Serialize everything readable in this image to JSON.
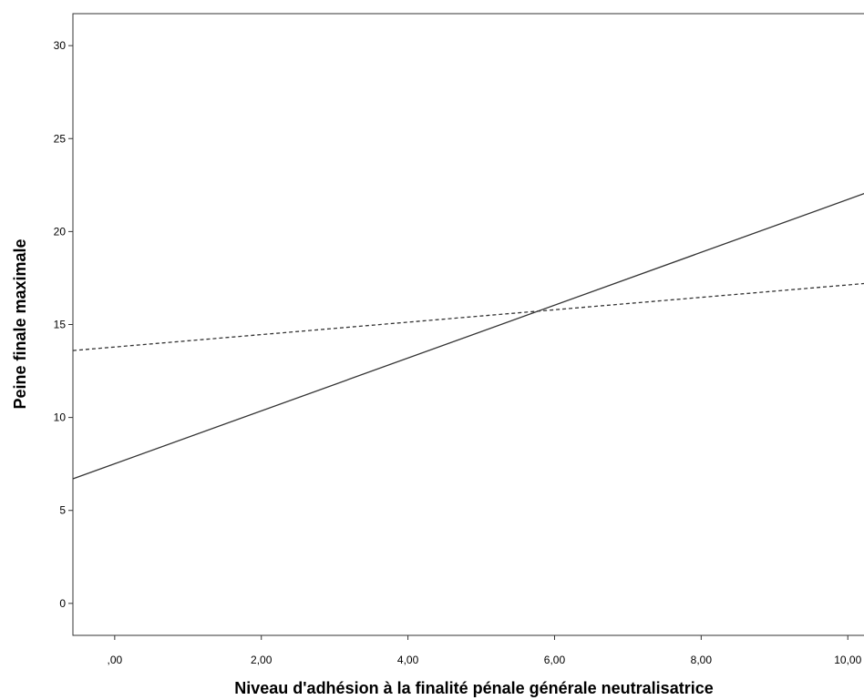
{
  "chart_data": {
    "type": "line",
    "title": "",
    "xlabel": "Niveau d'adhésion à la finalité pénale générale neutralisatrice",
    "ylabel": "Peine finale maximale",
    "xlim": [
      -0.57,
      10.37
    ],
    "ylim": [
      -1.72,
      31.72
    ],
    "x_ticks": [
      0,
      2,
      4,
      6,
      8,
      10
    ],
    "x_tick_labels": [
      ",00",
      "2,00",
      "4,00",
      "6,00",
      "8,00",
      "10,00"
    ],
    "y_ticks": [
      0,
      5,
      10,
      15,
      20,
      25,
      30
    ],
    "y_tick_labels": [
      "0",
      "5",
      "10",
      "15",
      "20",
      "25",
      "30"
    ],
    "grid": false,
    "legend": "none",
    "series": [
      {
        "style": "solid",
        "color": "#333333",
        "x": [
          -0.57,
          10.37
        ],
        "y": [
          6.7,
          22.25
        ]
      },
      {
        "style": "dashed",
        "color": "#333333",
        "x": [
          -0.57,
          10.37
        ],
        "y": [
          13.6,
          17.25
        ]
      }
    ]
  }
}
